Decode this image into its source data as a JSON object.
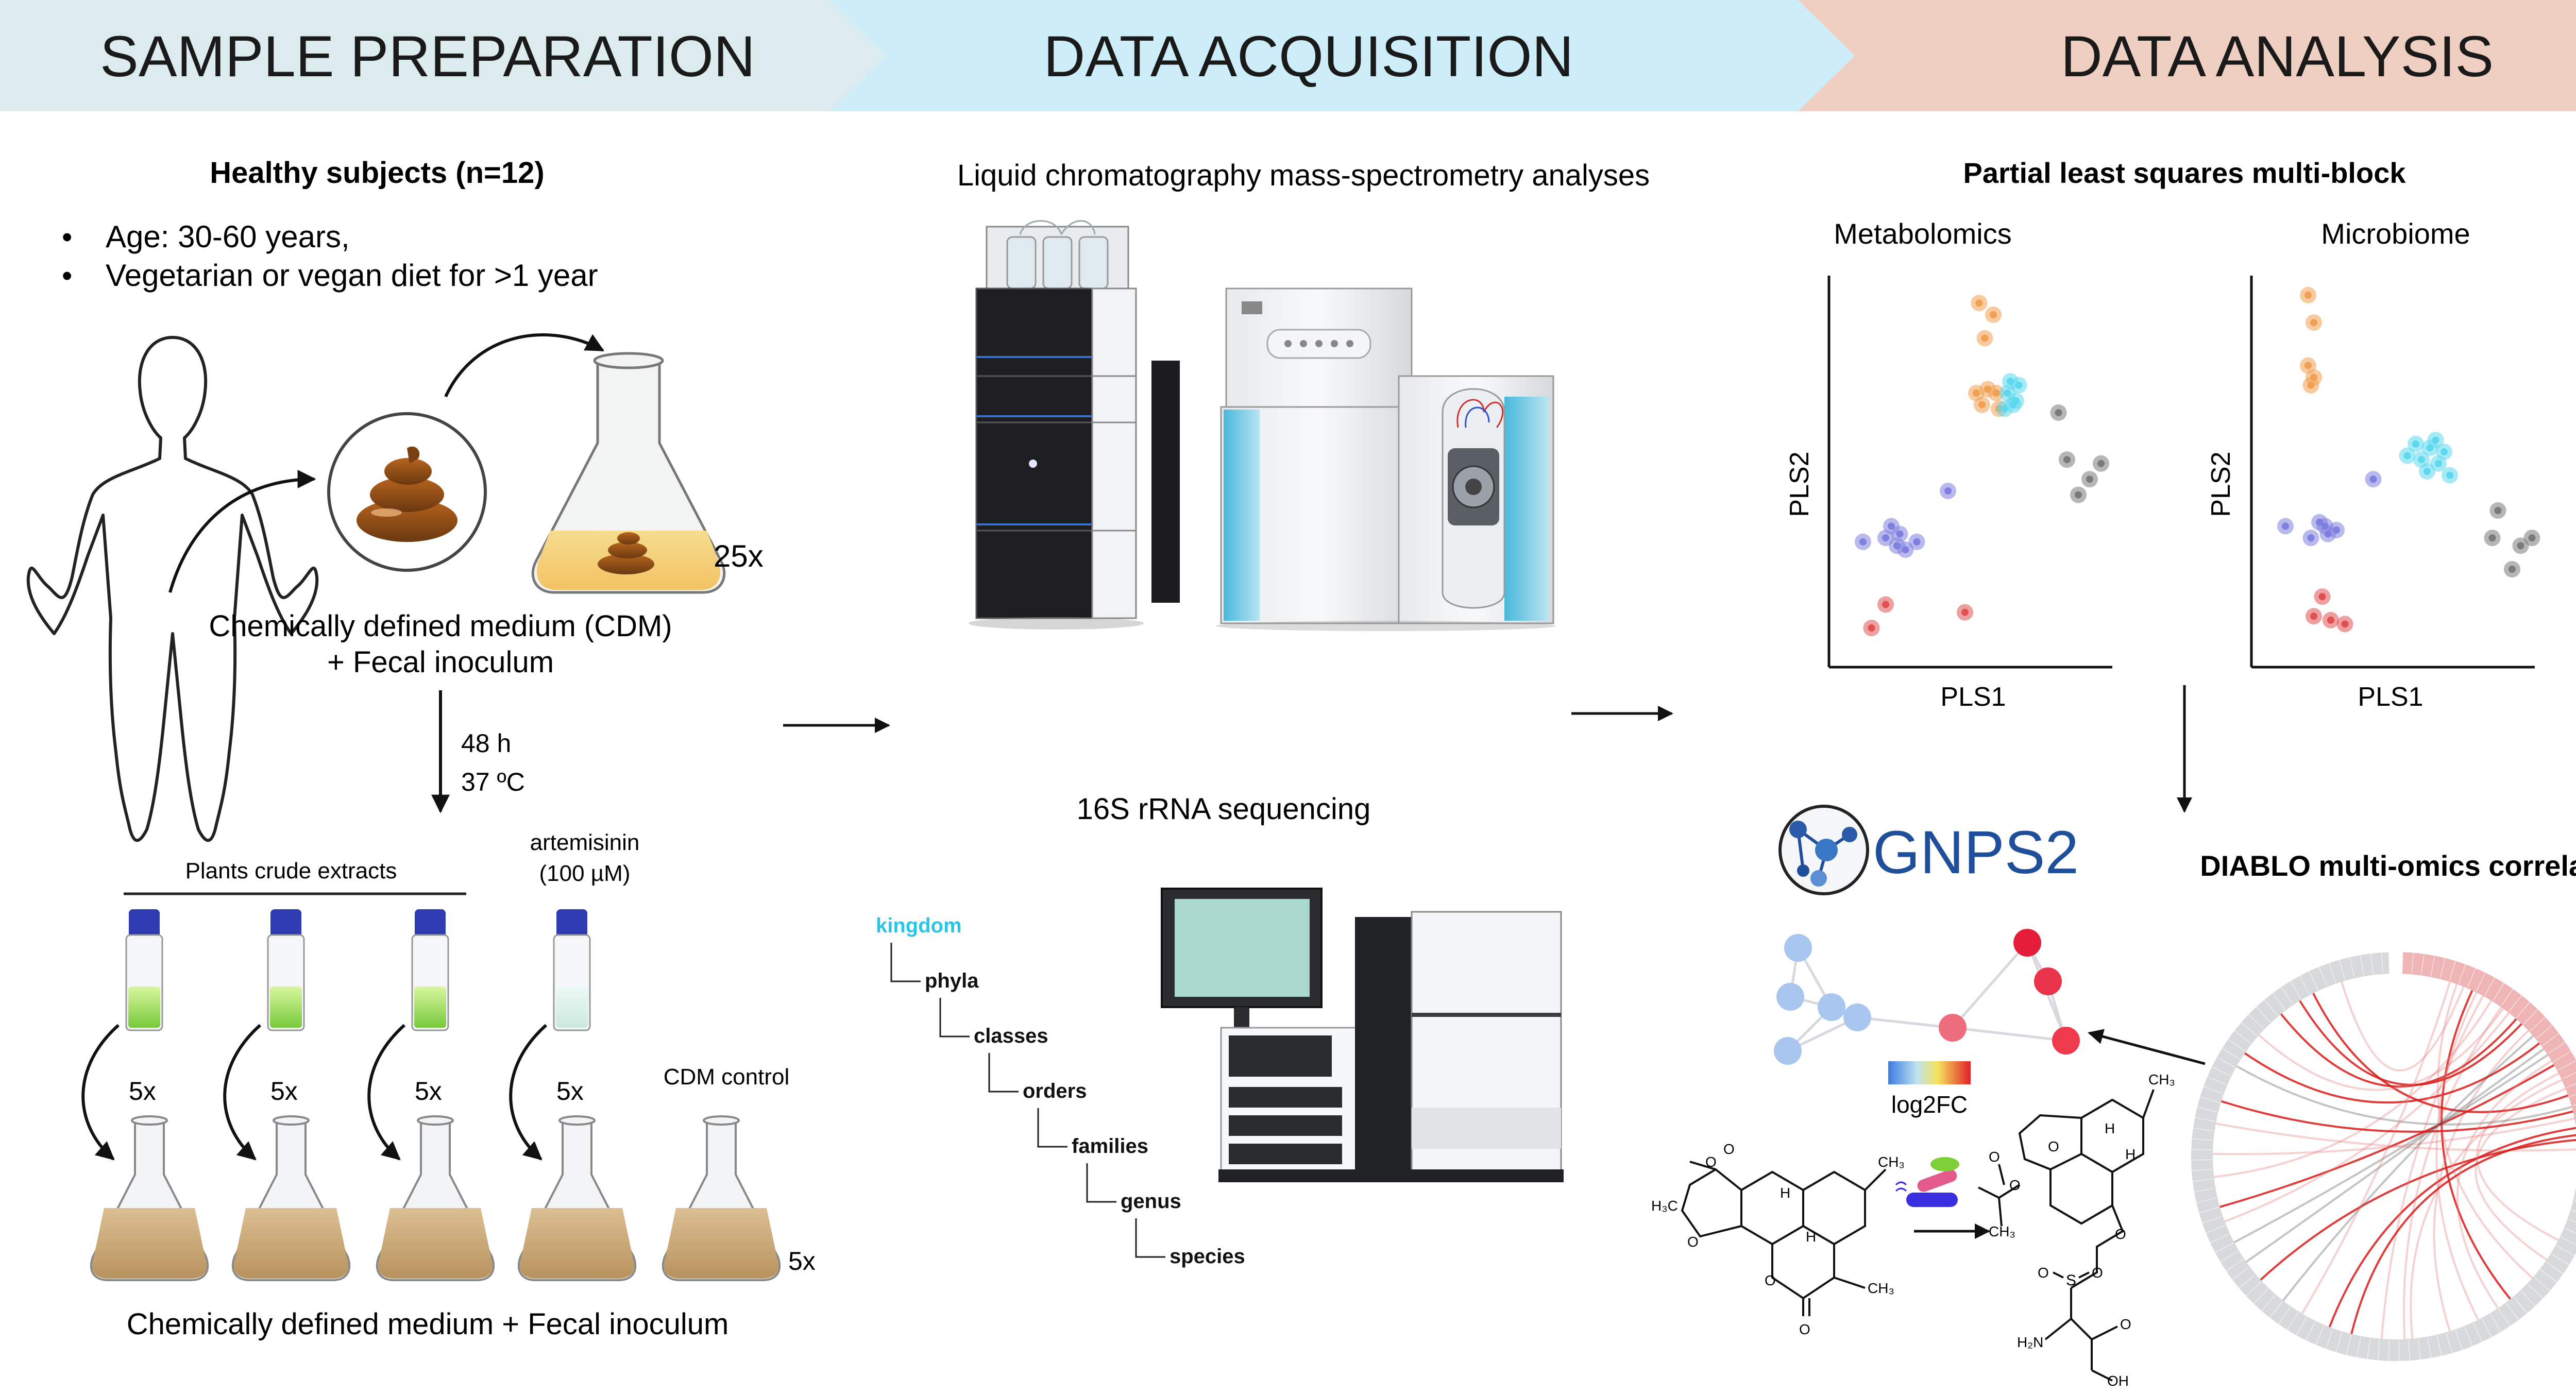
{
  "headers": {
    "sample_preparation": "SAMPLE PREPARATION",
    "data_acquisition": "DATA ACQUISITION",
    "data_analysis": "DATA ANALYSIS"
  },
  "sample_prep": {
    "subjects_title": "Healthy subjects (n=12)",
    "bullets": [
      "Age: 30-60 years,",
      "Vegetarian or vegan diet for >1 year"
    ],
    "bullet_mark": "•",
    "flask_count": "25x",
    "medium_line1": "Chemically defined medium (CDM)",
    "medium_line2": "+  Fecal inoculum",
    "incubation_time": "48 h",
    "incubation_temp": "37 ºC",
    "plants_label": "Plants crude extracts",
    "artemisinin_line1": "artemisinin",
    "artemisinin_line2": "(100 µM)",
    "replicate_label": "5x",
    "cdm_control": "CDM control",
    "bottom_label": "Chemically defined medium + Fecal inoculum"
  },
  "acquisition": {
    "lcms_title": "Liquid chromatography mass-spectrometry analyses",
    "seq_title": "16S rRNA sequencing",
    "taxonomy": [
      "kingdom",
      "phyla",
      "classes",
      "orders",
      "families",
      "genus",
      "species"
    ]
  },
  "analysis": {
    "pls_title": "Partial least squares multi-block",
    "plot1_title": "Metabolomics",
    "plot2_title": "Microbiome",
    "xlabel": "PLS1",
    "ylabel": "PLS2",
    "gnps_logo": "GNPS2",
    "colorbar_label": "log2FC",
    "diablo_title": "DIABLO multi-omics correlation"
  },
  "chemistry": {
    "artemisinin_labels": [
      "H₃C",
      "O",
      "O",
      "H",
      "H",
      "O",
      "O",
      "O",
      "CH₃",
      "CH₃",
      "H",
      "H"
    ],
    "product_labels": [
      "O",
      "O",
      "CH₃",
      "O",
      "CH₃",
      "H",
      "H",
      "O",
      "S",
      "O",
      "O",
      "H₂N",
      "OH",
      "O"
    ]
  },
  "colors": {
    "header_prep": "#dcebed",
    "header_acq": "#cdeef8",
    "header_analysis": "#efcfc2",
    "orange_points": "#f0a050",
    "cyan_points": "#5dd8ee",
    "blue_points": "#7f7fe0",
    "red_points": "#e05050",
    "gray_points": "#7a7a7a",
    "kingdom_text": "#27c6e6"
  },
  "chart_data": [
    {
      "type": "scatter",
      "title": "Metabolomics",
      "xlabel": "PLS1",
      "ylabel": "PLS2",
      "series": [
        {
          "color": "orange",
          "points": [
            [
              0.53,
              0.93
            ],
            [
              0.58,
              0.9
            ],
            [
              0.55,
              0.84
            ],
            [
              0.52,
              0.7
            ],
            [
              0.56,
              0.71
            ],
            [
              0.54,
              0.67
            ],
            [
              0.59,
              0.7
            ],
            [
              0.6,
              0.66
            ]
          ]
        },
        {
          "color": "cyan",
          "points": [
            [
              0.63,
              0.7
            ],
            [
              0.66,
              0.68
            ],
            [
              0.62,
              0.66
            ],
            [
              0.64,
              0.73
            ],
            [
              0.67,
              0.72
            ],
            [
              0.65,
              0.67
            ]
          ]
        },
        {
          "color": "gray",
          "points": [
            [
              0.81,
              0.65
            ],
            [
              0.84,
              0.53
            ],
            [
              0.92,
              0.48
            ],
            [
              0.96,
              0.52
            ],
            [
              0.88,
              0.44
            ]
          ]
        },
        {
          "color": "blue",
          "points": [
            [
              0.42,
              0.45
            ],
            [
              0.12,
              0.32
            ],
            [
              0.22,
              0.36
            ],
            [
              0.24,
              0.31
            ],
            [
              0.27,
              0.3
            ],
            [
              0.31,
              0.32
            ],
            [
              0.25,
              0.34
            ],
            [
              0.2,
              0.33
            ]
          ]
        },
        {
          "color": "red",
          "points": [
            [
              0.2,
              0.16
            ],
            [
              0.15,
              0.1
            ],
            [
              0.48,
              0.14
            ]
          ]
        }
      ]
    },
    {
      "type": "scatter",
      "title": "Microbiome",
      "xlabel": "PLS1",
      "ylabel": "PLS2",
      "series": [
        {
          "color": "orange",
          "points": [
            [
              0.2,
              0.95
            ],
            [
              0.22,
              0.88
            ],
            [
              0.2,
              0.77
            ],
            [
              0.22,
              0.74
            ],
            [
              0.21,
              0.72
            ]
          ]
        },
        {
          "color": "cyan",
          "points": [
            [
              0.55,
              0.54
            ],
            [
              0.58,
              0.57
            ],
            [
              0.6,
              0.53
            ],
            [
              0.63,
              0.56
            ],
            [
              0.66,
              0.52
            ],
            [
              0.68,
              0.55
            ],
            [
              0.7,
              0.49
            ],
            [
              0.62,
              0.5
            ],
            [
              0.65,
              0.58
            ]
          ]
        },
        {
          "color": "gray",
          "points": [
            [
              0.87,
              0.4
            ],
            [
              0.85,
              0.33
            ],
            [
              0.95,
              0.31
            ],
            [
              0.99,
              0.33
            ],
            [
              0.92,
              0.25
            ]
          ]
        },
        {
          "color": "blue",
          "points": [
            [
              0.43,
              0.48
            ],
            [
              0.12,
              0.36
            ],
            [
              0.24,
              0.37
            ],
            [
              0.27,
              0.34
            ],
            [
              0.3,
              0.35
            ],
            [
              0.26,
              0.36
            ],
            [
              0.21,
              0.33
            ]
          ]
        },
        {
          "color": "red",
          "points": [
            [
              0.25,
              0.18
            ],
            [
              0.22,
              0.13
            ],
            [
              0.28,
              0.12
            ],
            [
              0.33,
              0.11
            ]
          ]
        }
      ]
    }
  ]
}
